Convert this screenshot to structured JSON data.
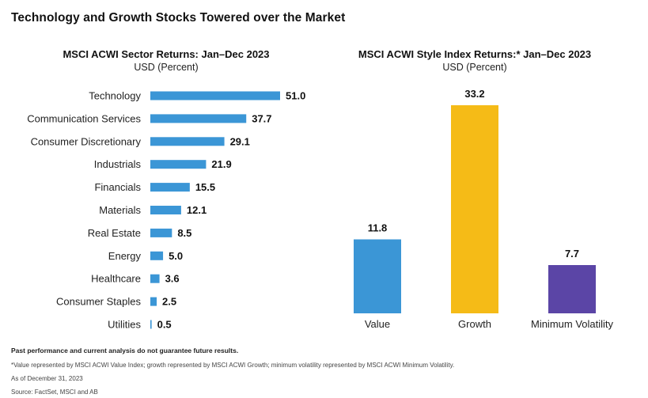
{
  "page": {
    "title": "Technology and Growth Stocks Towered over the Market"
  },
  "chart_data": [
    {
      "type": "bar",
      "orientation": "horizontal",
      "title": "MSCI ACWI Sector Returns: Jan–Dec 2023",
      "subtitle": "USD (Percent)",
      "categories": [
        "Technology",
        "Communication Services",
        "Consumer Discretionary",
        "Industrials",
        "Financials",
        "Materials",
        "Real Estate",
        "Energy",
        "Healthcare",
        "Consumer Staples",
        "Utilities"
      ],
      "values": [
        51.0,
        37.7,
        29.1,
        21.9,
        15.5,
        12.1,
        8.5,
        5.0,
        3.6,
        2.5,
        0.5
      ],
      "value_labels": [
        "51.0",
        "37.7",
        "29.1",
        "21.9",
        "15.5",
        "12.1",
        "8.5",
        "5.0",
        "3.6",
        "2.5",
        "0.5"
      ],
      "xlim": [
        0,
        51.0
      ],
      "color": "#3b96d6",
      "grid": false
    },
    {
      "type": "bar",
      "orientation": "vertical",
      "title": "MSCI ACWI Style Index Returns:* Jan–Dec 2023",
      "subtitle": "USD (Percent)",
      "categories": [
        "Value",
        "Growth",
        "Minimum Volatility"
      ],
      "values": [
        11.8,
        33.2,
        7.7
      ],
      "value_labels": [
        "11.8",
        "33.2",
        "7.7"
      ],
      "colors": [
        "#3b96d6",
        "#f5bb17",
        "#5b45a6"
      ],
      "ylim": [
        0,
        33.2
      ],
      "grid": false
    }
  ],
  "footer": {
    "disclaimer": "Past performance and current analysis do not guarantee future results.",
    "note": "*Value represented by MSCI ACWI Value Index; growth represented by MSCI ACWI Growth; minimum volatility represented by MSCI ACWI Minimum Volatility.",
    "as_of": "As of December 31, 2023",
    "source": "Source: FactSet, MSCI and AB"
  }
}
